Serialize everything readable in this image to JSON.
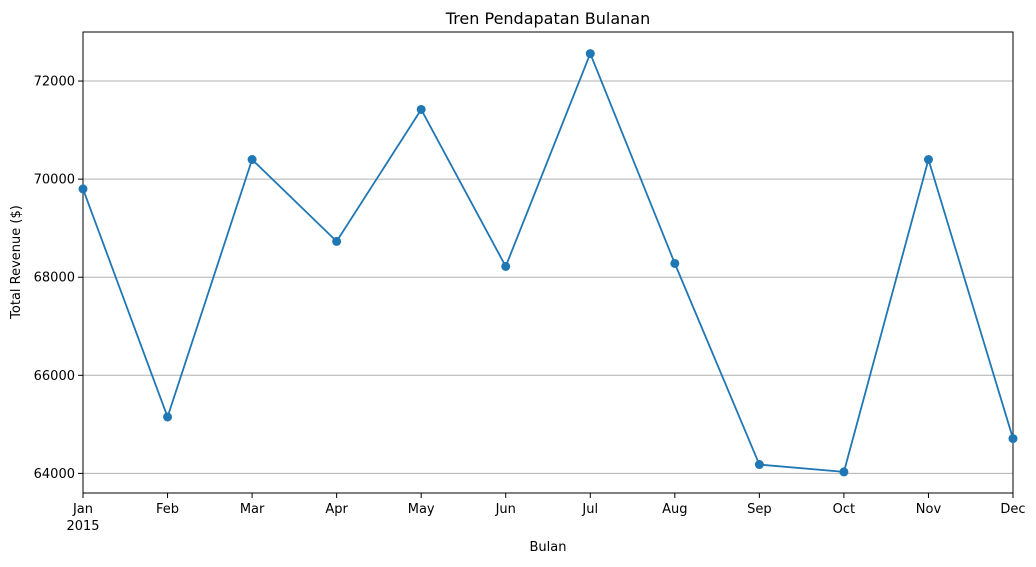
{
  "chart_data": {
    "type": "line",
    "title": "Tren Pendapatan Bulanan",
    "xlabel": "Bulan",
    "ylabel": "Total Revenue ($)",
    "categories": [
      "Jan",
      "Feb",
      "Mar",
      "Apr",
      "May",
      "Jun",
      "Jul",
      "Aug",
      "Sep",
      "Oct",
      "Nov",
      "Dec"
    ],
    "year_label": "2015",
    "series": [
      {
        "values": [
          69800,
          65150,
          70400,
          68730,
          71420,
          68220,
          72560,
          68280,
          64180,
          64030,
          70400,
          64710
        ],
        "color": "#1f77b4"
      }
    ],
    "ylim": [
      63600,
      73000
    ],
    "yticks": [
      64000,
      66000,
      68000,
      70000,
      72000
    ],
    "grid": "y-axis",
    "marker": "circle"
  }
}
